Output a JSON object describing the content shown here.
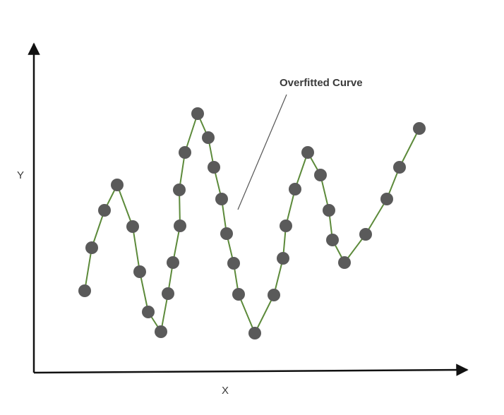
{
  "diagram": {
    "x_axis_label": "X",
    "y_axis_label": "Y",
    "annotation": "Overfitted Curve",
    "colors": {
      "axis": "#111111",
      "curve": "#5c8a3a",
      "point": "#5a5a5a",
      "pointer": "#555555"
    }
  }
}
